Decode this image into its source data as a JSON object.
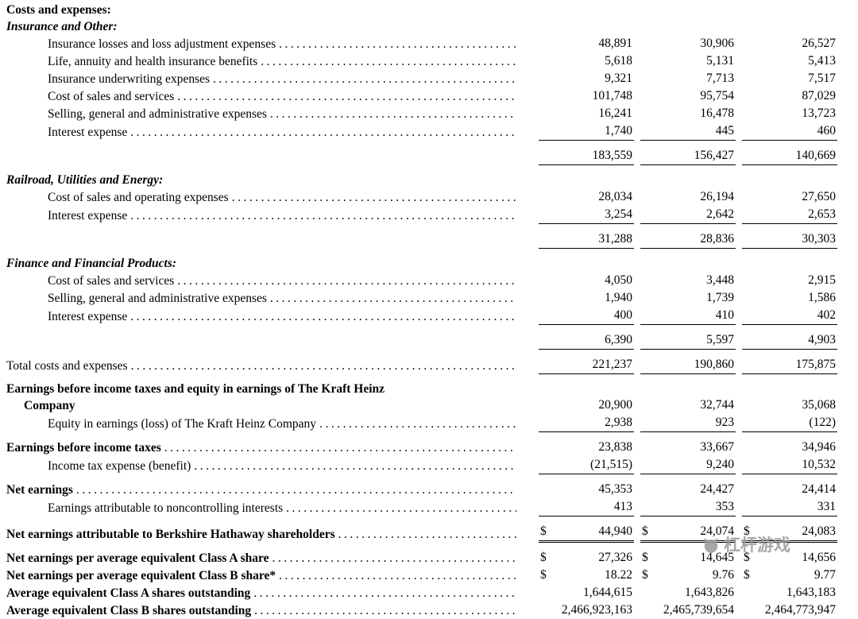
{
  "watermark": {
    "text": "杠杆游戏"
  },
  "table": {
    "currency": "$",
    "rows": [
      {
        "label": "Costs and expenses:",
        "bold": true,
        "dots": false
      },
      {
        "label": "Insurance and Other:",
        "bold": true,
        "italic": true,
        "dots": false
      },
      {
        "label": "Insurance losses and loss adjustment expenses",
        "indent": 1,
        "dots": true,
        "values": [
          "48,891",
          "30,906",
          "26,527"
        ]
      },
      {
        "label": "Life, annuity and health insurance benefits",
        "indent": 1,
        "dots": true,
        "values": [
          "5,618",
          "5,131",
          "5,413"
        ]
      },
      {
        "label": "Insurance underwriting expenses",
        "indent": 1,
        "dots": true,
        "values": [
          "9,321",
          "7,713",
          "7,517"
        ]
      },
      {
        "label": "Cost of sales and services",
        "indent": 1,
        "dots": true,
        "values": [
          "101,748",
          "95,754",
          "87,029"
        ]
      },
      {
        "label": "Selling, general and administrative expenses",
        "indent": 1,
        "dots": true,
        "values": [
          "16,241",
          "16,478",
          "13,723"
        ]
      },
      {
        "label": "Interest expense",
        "indent": 1,
        "dots": true,
        "values": [
          "1,740",
          "445",
          "460"
        ],
        "underline": "single"
      },
      {
        "label": "",
        "values": [
          "183,559",
          "156,427",
          "140,669"
        ],
        "underline": "single",
        "gap": true
      },
      {
        "label": "Railroad, Utilities and Energy:",
        "bold": true,
        "italic": true,
        "dots": false,
        "gap": true
      },
      {
        "label": "Cost of sales and operating expenses",
        "indent": 1,
        "dots": true,
        "values": [
          "28,034",
          "26,194",
          "27,650"
        ]
      },
      {
        "label": "Interest expense",
        "indent": 1,
        "dots": true,
        "values": [
          "3,254",
          "2,642",
          "2,653"
        ],
        "underline": "single"
      },
      {
        "label": "",
        "values": [
          "31,288",
          "28,836",
          "30,303"
        ],
        "underline": "single",
        "gap": true
      },
      {
        "label": "Finance and Financial Products:",
        "bold": true,
        "italic": true,
        "dots": false,
        "gap": true
      },
      {
        "label": "Cost of sales and services",
        "indent": 1,
        "dots": true,
        "values": [
          "4,050",
          "3,448",
          "2,915"
        ]
      },
      {
        "label": "Selling, general and administrative expenses",
        "indent": 1,
        "dots": true,
        "values": [
          "1,940",
          "1,739",
          "1,586"
        ]
      },
      {
        "label": "Interest expense",
        "indent": 1,
        "dots": true,
        "values": [
          "400",
          "410",
          "402"
        ],
        "underline": "single"
      },
      {
        "label": "",
        "values": [
          "6,390",
          "5,597",
          "4,903"
        ],
        "underline": "single",
        "gap": true
      },
      {
        "label": "Total costs and expenses",
        "dots": true,
        "values": [
          "221,237",
          "190,860",
          "175,875"
        ],
        "underline": "single",
        "gap": true
      },
      {
        "label": "Earnings before income taxes and equity in earnings of The Kraft Heinz",
        "label2": "Company",
        "bold": true,
        "dots": false,
        "values": [
          "20,900",
          "32,744",
          "35,068"
        ],
        "gap": true
      },
      {
        "label": "Equity in earnings (loss) of The Kraft Heinz Company",
        "indent": 1,
        "dots": true,
        "values": [
          "2,938",
          "923",
          "(122)"
        ],
        "underline": "single"
      },
      {
        "label": "Earnings before income taxes",
        "bold": true,
        "dots": true,
        "values": [
          "23,838",
          "33,667",
          "34,946"
        ],
        "gap": true
      },
      {
        "label": "Income tax expense (benefit)",
        "indent": 1,
        "dots": true,
        "values": [
          "(21,515)",
          "9,240",
          "10,532"
        ],
        "underline": "single"
      },
      {
        "label": "Net earnings",
        "bold": true,
        "dots": true,
        "values": [
          "45,353",
          "24,427",
          "24,414"
        ],
        "gap": true
      },
      {
        "label": "Earnings attributable to noncontrolling interests",
        "indent": 1,
        "dots": true,
        "values": [
          "413",
          "353",
          "331"
        ],
        "underline": "single"
      },
      {
        "label": "Net earnings attributable to Berkshire Hathaway shareholders",
        "bold": true,
        "dots": true,
        "dollar": true,
        "values": [
          "44,940",
          "24,074",
          "24,083"
        ],
        "underline": "double",
        "gap": true
      },
      {
        "label": "Net earnings per average equivalent Class A share",
        "bold": true,
        "dots": true,
        "dollar": true,
        "values": [
          "27,326",
          "14,645",
          "14,656"
        ],
        "gap": true
      },
      {
        "label": "Net earnings per average equivalent Class B share*",
        "bold": true,
        "dots": true,
        "dollar": true,
        "values": [
          "18.22",
          "9.76",
          "9.77"
        ]
      },
      {
        "label": "Average equivalent Class A shares outstanding",
        "bold": true,
        "dots": true,
        "values": [
          "1,644,615",
          "1,643,826",
          "1,643,183"
        ]
      },
      {
        "label": "Average equivalent Class B shares outstanding",
        "bold": true,
        "dots": true,
        "values": [
          "2,466,923,163",
          "2,465,739,654",
          "2,464,773,947"
        ]
      }
    ]
  }
}
